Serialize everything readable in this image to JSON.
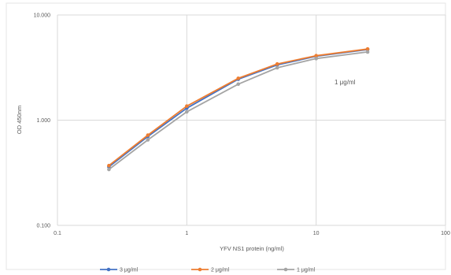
{
  "chart_data": {
    "type": "line",
    "xlabel": "YFV NS1 protein (ng/ml)",
    "ylabel": "OD 450nm",
    "x_scale": "log",
    "y_scale": "log",
    "xlim": [
      0.1,
      100
    ],
    "ylim": [
      0.1,
      10
    ],
    "x_ticks": [
      "0.1",
      "1",
      "10",
      "100"
    ],
    "y_ticks": [
      "0.100",
      "1.000",
      "10.000"
    ],
    "grid": true,
    "legend_position": "bottom",
    "annotation": "1 μg/ml",
    "x": [
      0.25,
      0.5,
      1,
      2.5,
      5,
      10,
      25
    ],
    "series": [
      {
        "name": "3 μg/ml",
        "color": "#4472C4",
        "values": [
          0.36,
          0.7,
          1.3,
          2.45,
          3.35,
          4.05,
          4.7
        ]
      },
      {
        "name": "2 μg/ml",
        "color": "#ED7D31",
        "values": [
          0.37,
          0.72,
          1.36,
          2.5,
          3.42,
          4.1,
          4.75
        ]
      },
      {
        "name": "1 μg/ml",
        "color": "#A5A5A5",
        "values": [
          0.34,
          0.65,
          1.2,
          2.2,
          3.15,
          3.85,
          4.45
        ]
      }
    ]
  }
}
